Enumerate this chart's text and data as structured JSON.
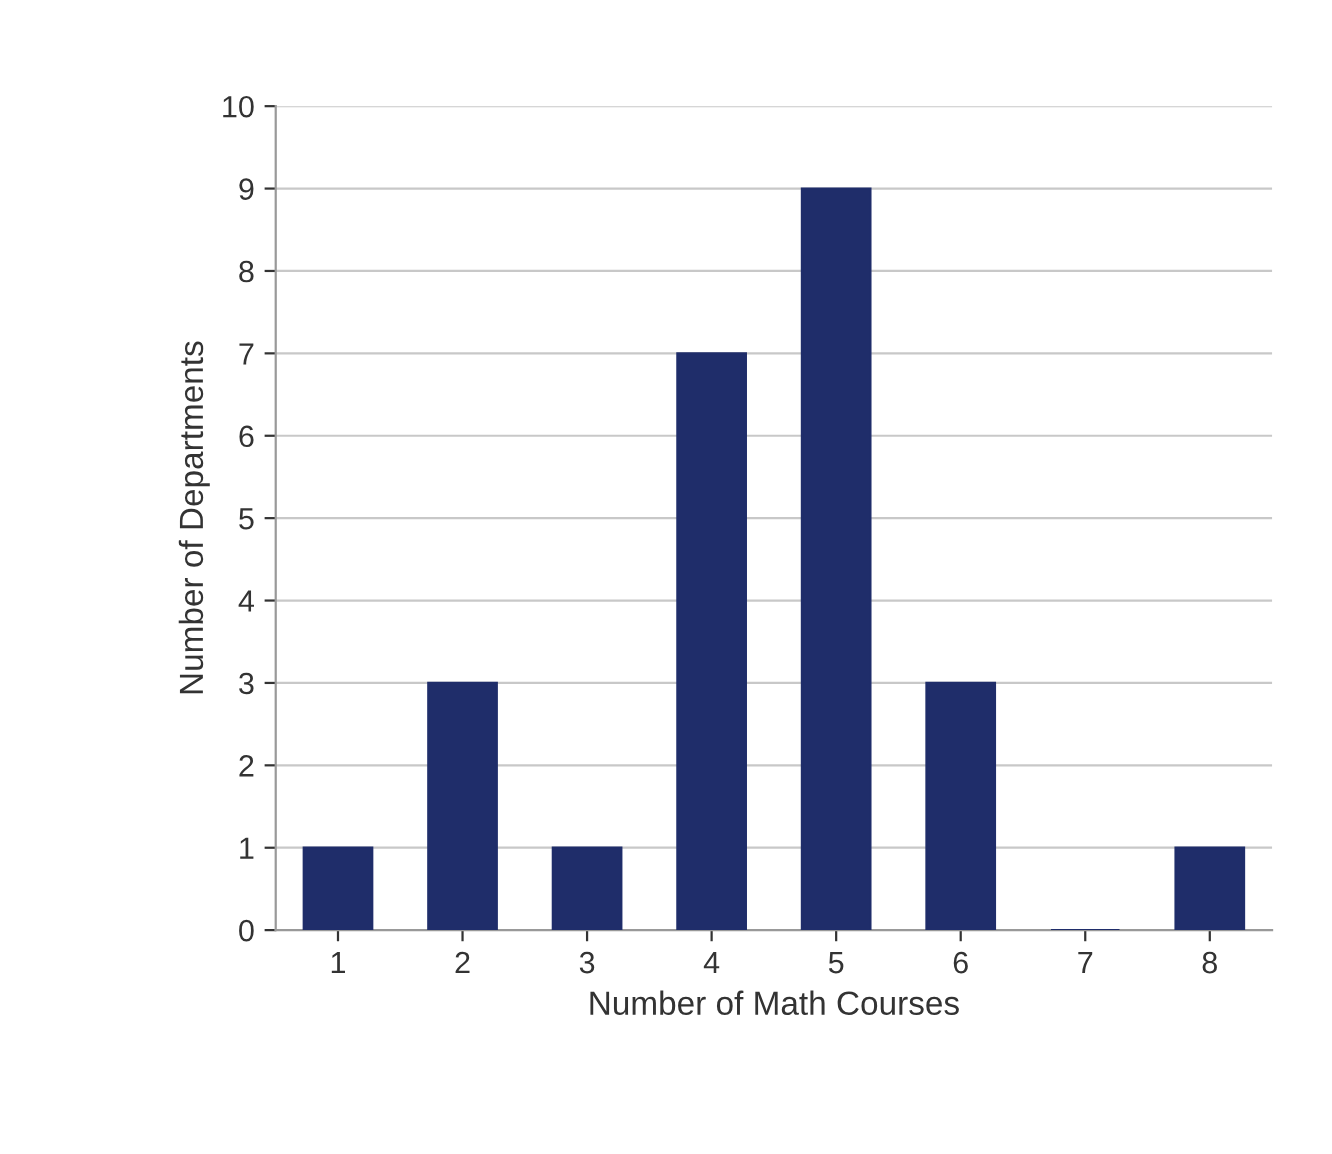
{
  "chart_data": {
    "type": "bar",
    "xlabel": "Number of Math Courses",
    "ylabel": "Number of Departments",
    "categories": [
      "1",
      "2",
      "3",
      "4",
      "5",
      "6",
      "7",
      "8"
    ],
    "values": [
      1,
      3,
      1,
      7,
      9,
      3,
      0,
      1
    ],
    "color": "#1f2d6a",
    "ylim": [
      0,
      10
    ],
    "yticks": [
      0,
      1,
      2,
      3,
      4,
      5,
      6,
      7,
      8,
      9,
      10
    ],
    "grid": "y",
    "legend": false
  }
}
